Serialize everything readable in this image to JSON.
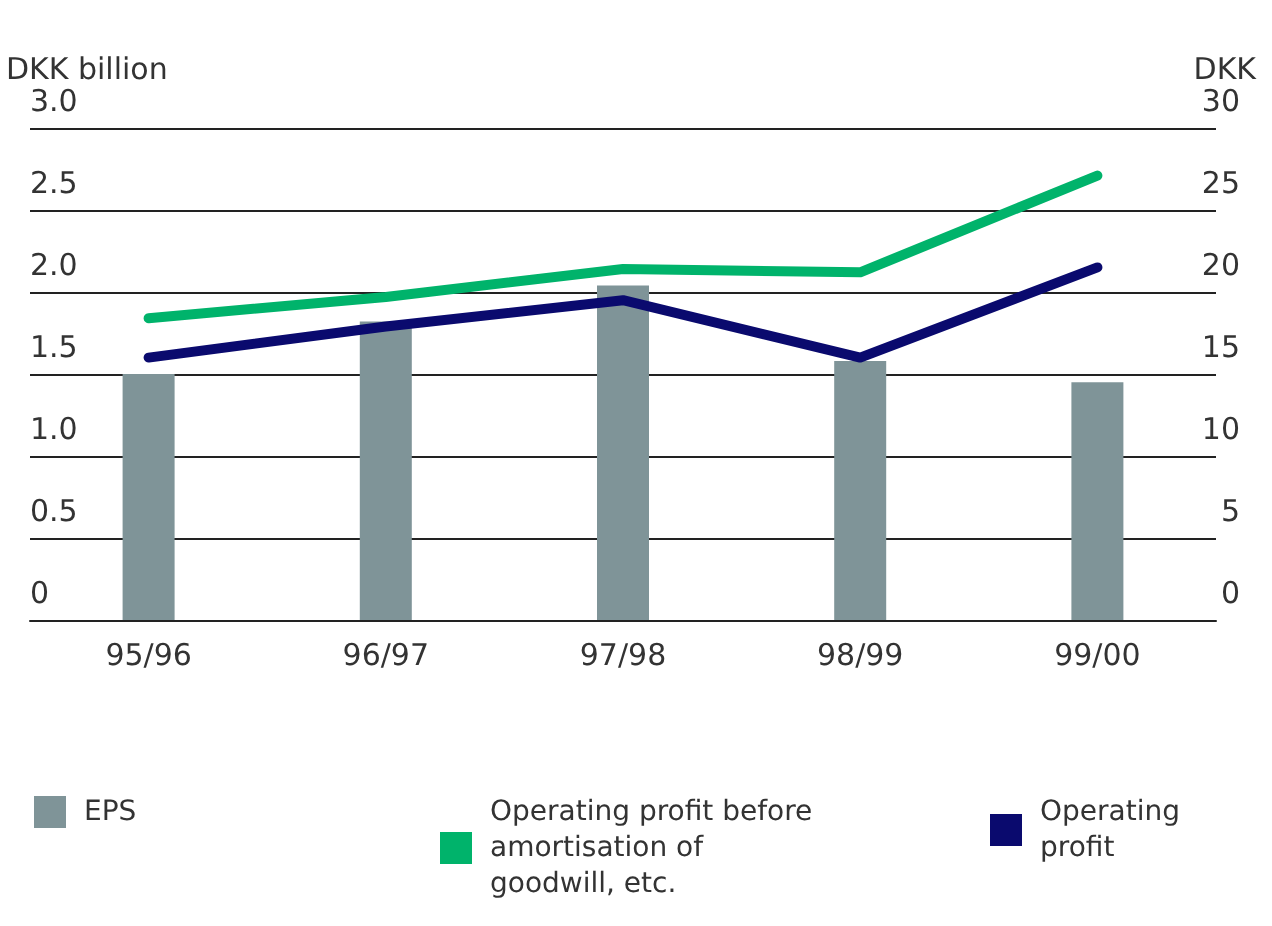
{
  "chart_data": {
    "type": "bar",
    "ylabel": "DKK billion",
    "y2label": "DKK",
    "categories": [
      "95/96",
      "96/97",
      "97/98",
      "98/99",
      "99/00"
    ],
    "series": [
      {
        "name": "EPS",
        "axis": "y2",
        "color": "#7f9498",
        "values": [
          15.0,
          18.2,
          20.4,
          15.8,
          14.5
        ]
      },
      {
        "name": "Operating profit before amortisation of goodwill, etc.",
        "type": "line",
        "color": "#00b36b",
        "values": [
          1.84,
          1.97,
          2.14,
          2.12,
          2.71
        ]
      },
      {
        "name": "Operating profit",
        "type": "line",
        "color": "#0a0a6e",
        "values": [
          1.6,
          1.79,
          1.95,
          1.6,
          2.15
        ]
      }
    ],
    "ylim": [
      0,
      3
    ],
    "yticks": [
      0,
      {
        "value": 0.5,
        "label": "0.5"
      },
      {
        "value": 1,
        "label": "1.0"
      },
      {
        "value": 1.5,
        "label": "1.5"
      },
      {
        "value": 2,
        "label": "2.0"
      },
      {
        "value": 2.5,
        "label": "2.5"
      },
      {
        "value": 3,
        "label": "3.0"
      }
    ],
    "y2lim": [
      0,
      30
    ],
    "y2ticks": [
      0,
      5,
      10,
      15,
      20,
      25,
      30
    ],
    "grid": "y",
    "legend": "bottom",
    "marker": "none",
    "line_style": "solid"
  }
}
